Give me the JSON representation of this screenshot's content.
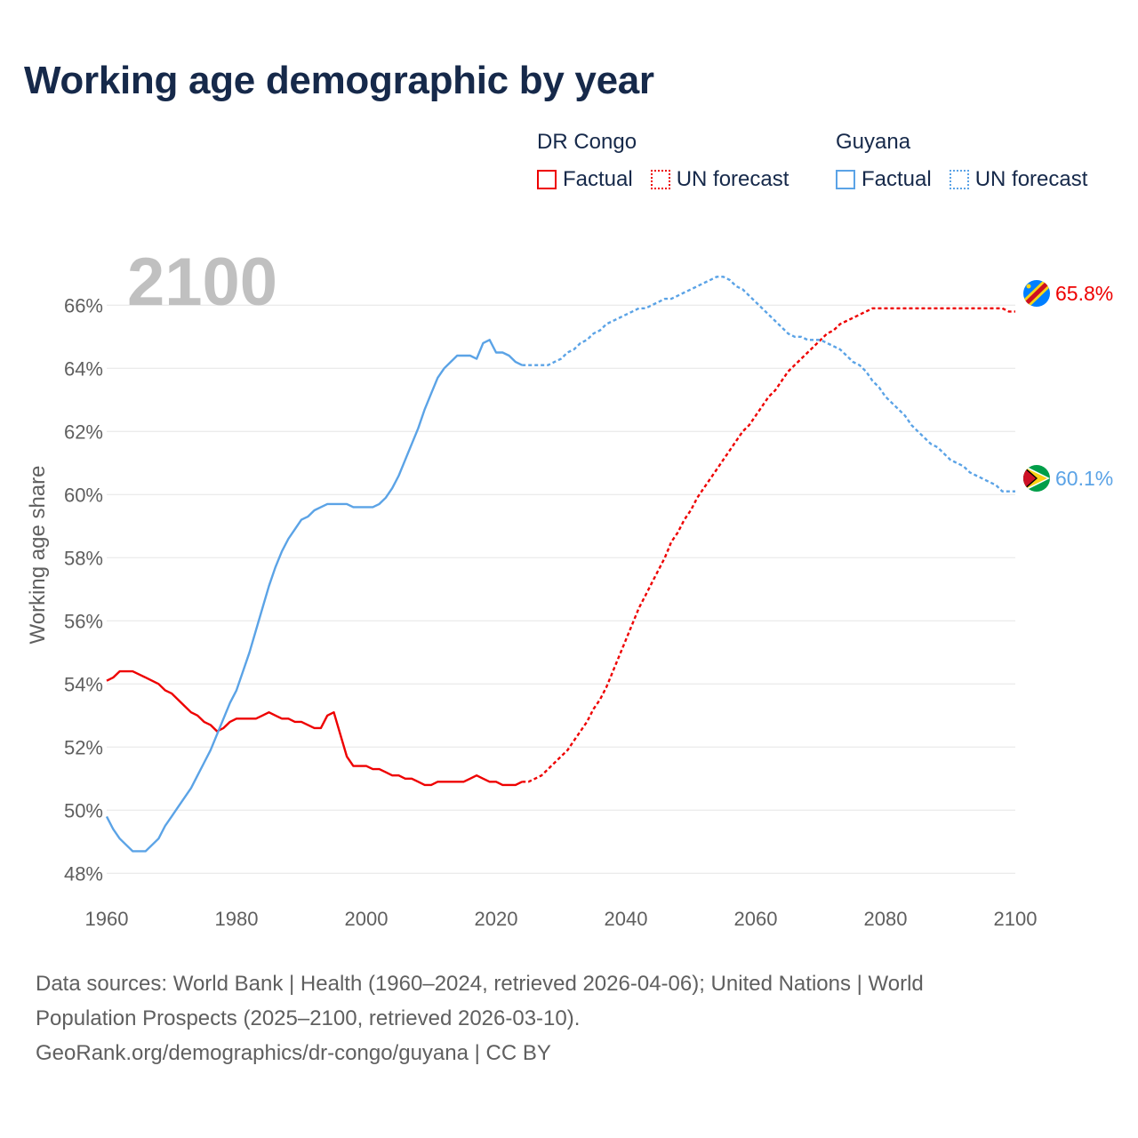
{
  "title": "Working age demographic by year",
  "year_label": "2100",
  "legend": {
    "groups": [
      {
        "name": "DR Congo",
        "color": "#ee0000",
        "factual_label": "Factual",
        "forecast_label": "UN forecast"
      },
      {
        "name": "Guyana",
        "color": "#5ba3e6",
        "factual_label": "Factual",
        "forecast_label": "UN forecast"
      }
    ]
  },
  "chart_data": {
    "type": "line",
    "title": "Working age demographic by year",
    "xlabel": "",
    "ylabel": "Working age share",
    "xlim": [
      1960,
      2100
    ],
    "ylim": [
      47.5,
      67.5
    ],
    "x_ticks": [
      1960,
      1980,
      2000,
      2020,
      2040,
      2060,
      2080,
      2100
    ],
    "y_ticks": [
      48,
      50,
      52,
      54,
      56,
      58,
      60,
      62,
      64,
      66
    ],
    "y_tick_suffix": "%",
    "grid": true,
    "series": [
      {
        "name": "DR Congo",
        "color": "#ee0000",
        "end_label": "65.8%",
        "flag": "dr-congo-flag",
        "factual": [
          [
            1960,
            54.1
          ],
          [
            1961,
            54.2
          ],
          [
            1962,
            54.4
          ],
          [
            1963,
            54.4
          ],
          [
            1964,
            54.4
          ],
          [
            1965,
            54.3
          ],
          [
            1966,
            54.2
          ],
          [
            1967,
            54.1
          ],
          [
            1968,
            54.0
          ],
          [
            1969,
            53.8
          ],
          [
            1970,
            53.7
          ],
          [
            1971,
            53.5
          ],
          [
            1972,
            53.3
          ],
          [
            1973,
            53.1
          ],
          [
            1974,
            53.0
          ],
          [
            1975,
            52.8
          ],
          [
            1976,
            52.7
          ],
          [
            1977,
            52.5
          ],
          [
            1978,
            52.6
          ],
          [
            1979,
            52.8
          ],
          [
            1980,
            52.9
          ],
          [
            1981,
            52.9
          ],
          [
            1982,
            52.9
          ],
          [
            1983,
            52.9
          ],
          [
            1984,
            53.0
          ],
          [
            1985,
            53.1
          ],
          [
            1986,
            53.0
          ],
          [
            1987,
            52.9
          ],
          [
            1988,
            52.9
          ],
          [
            1989,
            52.8
          ],
          [
            1990,
            52.8
          ],
          [
            1991,
            52.7
          ],
          [
            1992,
            52.6
          ],
          [
            1993,
            52.6
          ],
          [
            1994,
            53.0
          ],
          [
            1995,
            53.1
          ],
          [
            1996,
            52.4
          ],
          [
            1997,
            51.7
          ],
          [
            1998,
            51.4
          ],
          [
            1999,
            51.4
          ],
          [
            2000,
            51.4
          ],
          [
            2001,
            51.3
          ],
          [
            2002,
            51.3
          ],
          [
            2003,
            51.2
          ],
          [
            2004,
            51.1
          ],
          [
            2005,
            51.1
          ],
          [
            2006,
            51.0
          ],
          [
            2007,
            51.0
          ],
          [
            2008,
            50.9
          ],
          [
            2009,
            50.8
          ],
          [
            2010,
            50.8
          ],
          [
            2011,
            50.9
          ],
          [
            2012,
            50.9
          ],
          [
            2013,
            50.9
          ],
          [
            2014,
            50.9
          ],
          [
            2015,
            50.9
          ],
          [
            2016,
            51.0
          ],
          [
            2017,
            51.1
          ],
          [
            2018,
            51.0
          ],
          [
            2019,
            50.9
          ],
          [
            2020,
            50.9
          ],
          [
            2021,
            50.8
          ],
          [
            2022,
            50.8
          ],
          [
            2023,
            50.8
          ],
          [
            2024,
            50.9
          ]
        ],
        "forecast": [
          [
            2024,
            50.9
          ],
          [
            2025,
            50.9
          ],
          [
            2026,
            51.0
          ],
          [
            2027,
            51.1
          ],
          [
            2028,
            51.3
          ],
          [
            2029,
            51.5
          ],
          [
            2030,
            51.7
          ],
          [
            2031,
            51.9
          ],
          [
            2032,
            52.2
          ],
          [
            2033,
            52.5
          ],
          [
            2034,
            52.8
          ],
          [
            2035,
            53.2
          ],
          [
            2036,
            53.5
          ],
          [
            2037,
            53.9
          ],
          [
            2038,
            54.4
          ],
          [
            2039,
            54.9
          ],
          [
            2040,
            55.4
          ],
          [
            2041,
            55.9
          ],
          [
            2042,
            56.4
          ],
          [
            2043,
            56.8
          ],
          [
            2044,
            57.2
          ],
          [
            2045,
            57.6
          ],
          [
            2046,
            58.0
          ],
          [
            2047,
            58.5
          ],
          [
            2048,
            58.8
          ],
          [
            2049,
            59.2
          ],
          [
            2050,
            59.5
          ],
          [
            2051,
            59.9
          ],
          [
            2052,
            60.2
          ],
          [
            2053,
            60.5
          ],
          [
            2054,
            60.8
          ],
          [
            2055,
            61.1
          ],
          [
            2056,
            61.4
          ],
          [
            2057,
            61.7
          ],
          [
            2058,
            62.0
          ],
          [
            2059,
            62.2
          ],
          [
            2060,
            62.5
          ],
          [
            2061,
            62.8
          ],
          [
            2062,
            63.1
          ],
          [
            2063,
            63.3
          ],
          [
            2064,
            63.6
          ],
          [
            2065,
            63.9
          ],
          [
            2066,
            64.1
          ],
          [
            2067,
            64.3
          ],
          [
            2068,
            64.5
          ],
          [
            2069,
            64.7
          ],
          [
            2070,
            64.9
          ],
          [
            2071,
            65.1
          ],
          [
            2072,
            65.2
          ],
          [
            2073,
            65.4
          ],
          [
            2074,
            65.5
          ],
          [
            2075,
            65.6
          ],
          [
            2076,
            65.7
          ],
          [
            2077,
            65.8
          ],
          [
            2078,
            65.9
          ],
          [
            2079,
            65.9
          ],
          [
            2080,
            65.9
          ],
          [
            2085,
            65.9
          ],
          [
            2090,
            65.9
          ],
          [
            2095,
            65.9
          ],
          [
            2098,
            65.9
          ],
          [
            2099,
            65.8
          ],
          [
            2100,
            65.8
          ]
        ]
      },
      {
        "name": "Guyana",
        "color": "#5ba3e6",
        "end_label": "60.1%",
        "flag": "guyana-flag",
        "factual": [
          [
            1960,
            49.8
          ],
          [
            1961,
            49.4
          ],
          [
            1962,
            49.1
          ],
          [
            1963,
            48.9
          ],
          [
            1964,
            48.7
          ],
          [
            1965,
            48.7
          ],
          [
            1966,
            48.7
          ],
          [
            1967,
            48.9
          ],
          [
            1968,
            49.1
          ],
          [
            1969,
            49.5
          ],
          [
            1970,
            49.8
          ],
          [
            1971,
            50.1
          ],
          [
            1972,
            50.4
          ],
          [
            1973,
            50.7
          ],
          [
            1974,
            51.1
          ],
          [
            1975,
            51.5
          ],
          [
            1976,
            51.9
          ],
          [
            1977,
            52.4
          ],
          [
            1978,
            52.9
          ],
          [
            1979,
            53.4
          ],
          [
            1980,
            53.8
          ],
          [
            1981,
            54.4
          ],
          [
            1982,
            55.0
          ],
          [
            1983,
            55.7
          ],
          [
            1984,
            56.4
          ],
          [
            1985,
            57.1
          ],
          [
            1986,
            57.7
          ],
          [
            1987,
            58.2
          ],
          [
            1988,
            58.6
          ],
          [
            1989,
            58.9
          ],
          [
            1990,
            59.2
          ],
          [
            1991,
            59.3
          ],
          [
            1992,
            59.5
          ],
          [
            1993,
            59.6
          ],
          [
            1994,
            59.7
          ],
          [
            1995,
            59.7
          ],
          [
            1996,
            59.7
          ],
          [
            1997,
            59.7
          ],
          [
            1998,
            59.6
          ],
          [
            1999,
            59.6
          ],
          [
            2000,
            59.6
          ],
          [
            2001,
            59.6
          ],
          [
            2002,
            59.7
          ],
          [
            2003,
            59.9
          ],
          [
            2004,
            60.2
          ],
          [
            2005,
            60.6
          ],
          [
            2006,
            61.1
          ],
          [
            2007,
            61.6
          ],
          [
            2008,
            62.1
          ],
          [
            2009,
            62.7
          ],
          [
            2010,
            63.2
          ],
          [
            2011,
            63.7
          ],
          [
            2012,
            64.0
          ],
          [
            2013,
            64.2
          ],
          [
            2014,
            64.4
          ],
          [
            2015,
            64.4
          ],
          [
            2016,
            64.4
          ],
          [
            2017,
            64.3
          ],
          [
            2018,
            64.8
          ],
          [
            2019,
            64.9
          ],
          [
            2020,
            64.5
          ],
          [
            2021,
            64.5
          ],
          [
            2022,
            64.4
          ],
          [
            2023,
            64.2
          ],
          [
            2024,
            64.1
          ]
        ],
        "forecast": [
          [
            2024,
            64.1
          ],
          [
            2025,
            64.1
          ],
          [
            2026,
            64.1
          ],
          [
            2027,
            64.1
          ],
          [
            2028,
            64.1
          ],
          [
            2029,
            64.2
          ],
          [
            2030,
            64.3
          ],
          [
            2031,
            64.5
          ],
          [
            2032,
            64.6
          ],
          [
            2033,
            64.8
          ],
          [
            2034,
            64.9
          ],
          [
            2035,
            65.1
          ],
          [
            2036,
            65.2
          ],
          [
            2037,
            65.4
          ],
          [
            2038,
            65.5
          ],
          [
            2039,
            65.6
          ],
          [
            2040,
            65.7
          ],
          [
            2041,
            65.8
          ],
          [
            2042,
            65.9
          ],
          [
            2043,
            65.9
          ],
          [
            2044,
            66.0
          ],
          [
            2045,
            66.1
          ],
          [
            2046,
            66.2
          ],
          [
            2047,
            66.2
          ],
          [
            2048,
            66.3
          ],
          [
            2049,
            66.4
          ],
          [
            2050,
            66.5
          ],
          [
            2051,
            66.6
          ],
          [
            2052,
            66.7
          ],
          [
            2053,
            66.8
          ],
          [
            2054,
            66.9
          ],
          [
            2055,
            66.9
          ],
          [
            2056,
            66.8
          ],
          [
            2057,
            66.6
          ],
          [
            2058,
            66.5
          ],
          [
            2059,
            66.3
          ],
          [
            2060,
            66.1
          ],
          [
            2061,
            65.9
          ],
          [
            2062,
            65.7
          ],
          [
            2063,
            65.5
          ],
          [
            2064,
            65.3
          ],
          [
            2065,
            65.1
          ],
          [
            2066,
            65.0
          ],
          [
            2067,
            65.0
          ],
          [
            2068,
            64.9
          ],
          [
            2069,
            64.9
          ],
          [
            2070,
            64.9
          ],
          [
            2071,
            64.8
          ],
          [
            2072,
            64.7
          ],
          [
            2073,
            64.6
          ],
          [
            2074,
            64.4
          ],
          [
            2075,
            64.2
          ],
          [
            2076,
            64.1
          ],
          [
            2077,
            63.9
          ],
          [
            2078,
            63.6
          ],
          [
            2079,
            63.4
          ],
          [
            2080,
            63.1
          ],
          [
            2081,
            62.9
          ],
          [
            2082,
            62.7
          ],
          [
            2083,
            62.5
          ],
          [
            2084,
            62.2
          ],
          [
            2085,
            62.0
          ],
          [
            2086,
            61.8
          ],
          [
            2087,
            61.6
          ],
          [
            2088,
            61.5
          ],
          [
            2089,
            61.3
          ],
          [
            2090,
            61.1
          ],
          [
            2091,
            61.0
          ],
          [
            2092,
            60.9
          ],
          [
            2093,
            60.7
          ],
          [
            2094,
            60.6
          ],
          [
            2095,
            60.5
          ],
          [
            2096,
            60.4
          ],
          [
            2097,
            60.3
          ],
          [
            2098,
            60.1
          ],
          [
            2099,
            60.1
          ],
          [
            2100,
            60.1
          ]
        ]
      }
    ]
  },
  "footer": {
    "sources": "Data sources: World Bank | Health (1960–2024, retrieved 2026-04-06); United Nations | World Population Prospects (2025–2100, retrieved 2026-03-10).",
    "credit": "GeoRank.org/demographics/dr-congo/guyana | CC BY"
  }
}
